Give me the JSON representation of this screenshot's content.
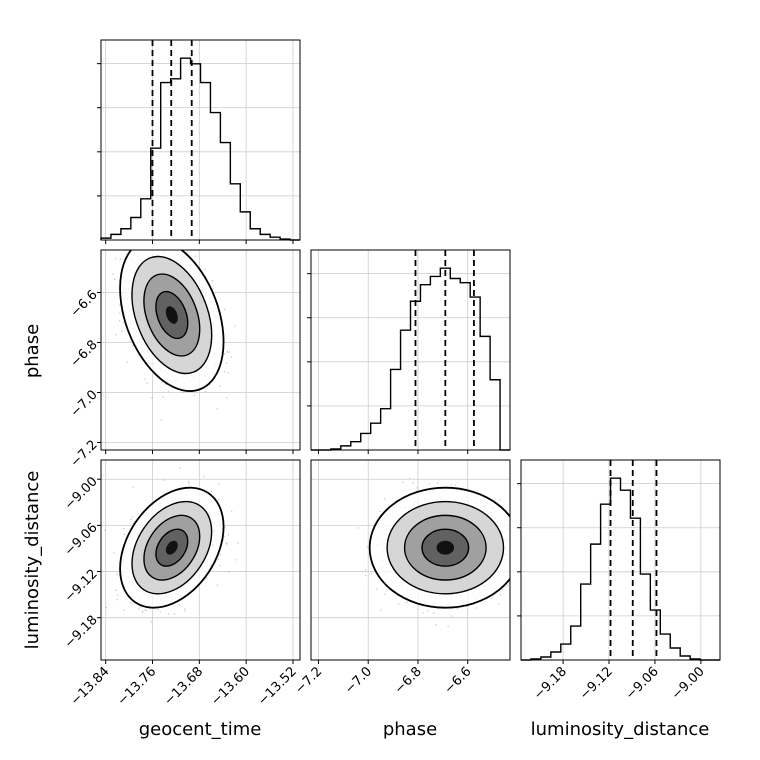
{
  "chart_data": {
    "type": "corner",
    "parameters": [
      "geocent_time",
      "phase",
      "luminosity_distance"
    ],
    "axis_titles": {
      "geocent_time": "geocent_time",
      "phase": "phase",
      "luminosity_distance": "luminosity_distance"
    },
    "ranges": {
      "geocent_time": [
        -13.848,
        -13.508
      ],
      "phase": [
        -7.23,
        -6.43
      ],
      "luminosity_distance": [
        -9.235,
        -8.975
      ]
    },
    "ticks": {
      "geocent_time": {
        "values": [
          -13.84,
          -13.76,
          -13.68,
          -13.6,
          -13.52
        ],
        "labels": [
          "−13.84",
          "−13.76",
          "−13.68",
          "−13.60",
          "−13.52"
        ]
      },
      "phase": {
        "values": [
          -7.2,
          -7.0,
          -6.8,
          -6.6
        ],
        "labels": [
          "−7.2",
          "−7.0",
          "−6.8",
          "−6.6"
        ]
      },
      "luminosity_distance": {
        "values": [
          -9.18,
          -9.12,
          -9.06,
          -9.0
        ],
        "labels": [
          "−9.18",
          "−9.12",
          "−9.06",
          "−9.00"
        ]
      }
    },
    "quantiles": {
      "geocent_time": [
        -13.76,
        -13.728,
        -13.693
      ],
      "phase": [
        -6.81,
        -6.69,
        -6.575
      ],
      "luminosity_distance": [
        -9.118,
        -9.089,
        -9.058
      ]
    },
    "means": {
      "geocent_time": -13.727,
      "phase": -6.69,
      "luminosity_distance": -9.089
    },
    "std": {
      "geocent_time": 0.034,
      "phase": 0.117,
      "luminosity_distance": 0.03
    },
    "correlations": {
      "phase|geocent_time": -0.35,
      "luminosity_distance|geocent_time": 0.35,
      "luminosity_distance|phase": 0.0
    },
    "histograms": {
      "geocent_time": [
        0.01,
        0.03,
        0.06,
        0.12,
        0.22,
        0.49,
        0.84,
        0.86,
        0.97,
        0.94,
        0.84,
        0.68,
        0.52,
        0.3,
        0.15,
        0.06,
        0.03,
        0.015,
        0.005,
        0.0
      ],
      "phase": [
        0.0,
        0.0,
        0.005,
        0.02,
        0.04,
        0.08,
        0.13,
        0.2,
        0.39,
        0.58,
        0.72,
        0.8,
        0.84,
        0.88,
        0.83,
        0.81,
        0.74,
        0.55,
        0.34,
        0.0
      ],
      "luminosity_distance": [
        0.0,
        0.005,
        0.015,
        0.04,
        0.08,
        0.17,
        0.38,
        0.58,
        0.78,
        0.91,
        0.85,
        0.71,
        0.43,
        0.25,
        0.13,
        0.06,
        0.02,
        0.005,
        0.0,
        0.0
      ]
    },
    "grid": true,
    "colors": {
      "line": "#000000",
      "grid": "#cccccc",
      "density": "#000000",
      "points": "#777777"
    }
  }
}
